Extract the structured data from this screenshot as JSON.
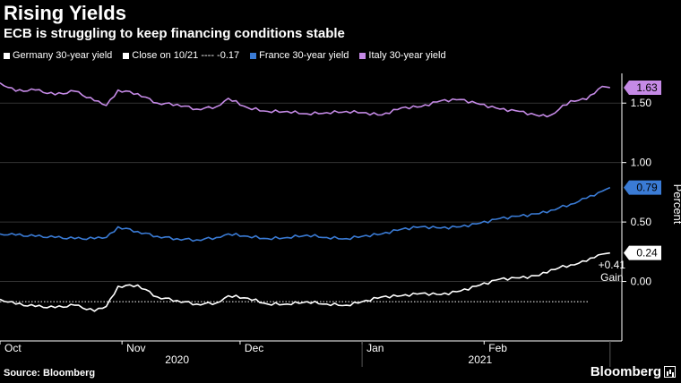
{
  "header": {
    "title": "Rising Yields",
    "subtitle": "ECB is struggling to keep financing conditions stable"
  },
  "footer": {
    "source": "Source: Bloomberg",
    "brand": "Bloomberg"
  },
  "colors": {
    "background": "#000000",
    "germany": "#ffffff",
    "france": "#3a7bd5",
    "italy": "#c58ae6",
    "grid": "#333333"
  },
  "chart_data": {
    "type": "line",
    "ylabel": "Percent",
    "ylim": [
      -0.5,
      1.75
    ],
    "yticks": [
      {
        "value": 0.0,
        "label": "0.00"
      },
      {
        "value": 0.5,
        "label": "0.50"
      },
      {
        "value": 1.0,
        "label": "1.00"
      },
      {
        "value": 1.5,
        "label": "1.50"
      }
    ],
    "xlim": [
      "2020-10-01",
      "2021-03-08"
    ],
    "month_ticks": [
      {
        "date": "2020-10-01",
        "label": "Oct"
      },
      {
        "date": "2020-11-01",
        "label": "Nov"
      },
      {
        "date": "2020-12-01",
        "label": "Dec"
      },
      {
        "date": "2021-01-01",
        "label": "Jan"
      },
      {
        "date": "2021-02-01",
        "label": "Feb"
      }
    ],
    "year_labels": [
      {
        "date": "2020-11-15",
        "label": "2020"
      },
      {
        "date": "2021-01-31",
        "label": "2021"
      }
    ],
    "grid": true,
    "legend_position": "top",
    "legend": [
      {
        "key": "germany",
        "label": "Germany 30-year yield"
      },
      {
        "key": "close",
        "label": "Close on 10/21 ---- -0.17"
      },
      {
        "key": "france",
        "label": "France 30-year yield"
      },
      {
        "key": "italy",
        "label": "Italy 30-year yield"
      }
    ],
    "reference_line": {
      "value": -0.17,
      "label": "Close on 10/21 ---- -0.17"
    },
    "annotation": {
      "line1": "+0.41",
      "line2": "Gain"
    },
    "series": [
      {
        "key": "italy",
        "name": "Italy 30-year yield",
        "color": "#c58ae6",
        "end_label": "1.63",
        "points": [
          [
            "2020-10-01",
            1.67
          ],
          [
            "2020-10-05",
            1.6
          ],
          [
            "2020-10-10",
            1.61
          ],
          [
            "2020-10-15",
            1.57
          ],
          [
            "2020-10-20",
            1.6
          ],
          [
            "2020-10-25",
            1.52
          ],
          [
            "2020-10-28",
            1.48
          ],
          [
            "2020-10-31",
            1.61
          ],
          [
            "2020-11-05",
            1.58
          ],
          [
            "2020-11-10",
            1.5
          ],
          [
            "2020-11-15",
            1.49
          ],
          [
            "2020-11-20",
            1.45
          ],
          [
            "2020-11-25",
            1.47
          ],
          [
            "2020-11-28",
            1.54
          ],
          [
            "2020-12-03",
            1.46
          ],
          [
            "2020-12-08",
            1.43
          ],
          [
            "2020-12-13",
            1.43
          ],
          [
            "2020-12-18",
            1.41
          ],
          [
            "2020-12-23",
            1.42
          ],
          [
            "2020-12-28",
            1.43
          ],
          [
            "2021-01-01",
            1.42
          ],
          [
            "2021-01-06",
            1.4
          ],
          [
            "2021-01-11",
            1.46
          ],
          [
            "2021-01-16",
            1.47
          ],
          [
            "2021-01-21",
            1.52
          ],
          [
            "2021-01-26",
            1.53
          ],
          [
            "2021-01-31",
            1.49
          ],
          [
            "2021-02-05",
            1.45
          ],
          [
            "2021-02-10",
            1.43
          ],
          [
            "2021-02-15",
            1.39
          ],
          [
            "2021-02-18",
            1.4
          ],
          [
            "2021-02-23",
            1.52
          ],
          [
            "2021-02-27",
            1.53
          ],
          [
            "2021-03-01",
            1.58
          ],
          [
            "2021-03-03",
            1.64
          ],
          [
            "2021-03-05",
            1.63
          ]
        ]
      },
      {
        "key": "france",
        "name": "France 30-year yield",
        "color": "#3a7bd5",
        "end_label": "0.79",
        "points": [
          [
            "2020-10-01",
            0.4
          ],
          [
            "2020-10-05",
            0.39
          ],
          [
            "2020-10-10",
            0.38
          ],
          [
            "2020-10-15",
            0.37
          ],
          [
            "2020-10-20",
            0.36
          ],
          [
            "2020-10-25",
            0.36
          ],
          [
            "2020-10-28",
            0.37
          ],
          [
            "2020-10-31",
            0.46
          ],
          [
            "2020-11-05",
            0.42
          ],
          [
            "2020-11-10",
            0.38
          ],
          [
            "2020-11-15",
            0.36
          ],
          [
            "2020-11-20",
            0.35
          ],
          [
            "2020-11-25",
            0.37
          ],
          [
            "2020-11-28",
            0.4
          ],
          [
            "2020-12-03",
            0.38
          ],
          [
            "2020-12-08",
            0.36
          ],
          [
            "2020-12-13",
            0.37
          ],
          [
            "2020-12-18",
            0.39
          ],
          [
            "2020-12-23",
            0.37
          ],
          [
            "2020-12-28",
            0.36
          ],
          [
            "2021-01-01",
            0.38
          ],
          [
            "2021-01-06",
            0.4
          ],
          [
            "2021-01-11",
            0.44
          ],
          [
            "2021-01-16",
            0.46
          ],
          [
            "2021-01-21",
            0.45
          ],
          [
            "2021-01-26",
            0.46
          ],
          [
            "2021-01-31",
            0.49
          ],
          [
            "2021-02-05",
            0.53
          ],
          [
            "2021-02-10",
            0.55
          ],
          [
            "2021-02-15",
            0.57
          ],
          [
            "2021-02-18",
            0.6
          ],
          [
            "2021-02-23",
            0.65
          ],
          [
            "2021-02-27",
            0.7
          ],
          [
            "2021-03-01",
            0.72
          ],
          [
            "2021-03-03",
            0.76
          ],
          [
            "2021-03-05",
            0.79
          ]
        ]
      },
      {
        "key": "germany",
        "name": "Germany 30-year yield",
        "color": "#ffffff",
        "end_label": "0.24",
        "points": [
          [
            "2020-10-01",
            -0.15
          ],
          [
            "2020-10-05",
            -0.19
          ],
          [
            "2020-10-10",
            -0.21
          ],
          [
            "2020-10-15",
            -0.22
          ],
          [
            "2020-10-20",
            -0.2
          ],
          [
            "2020-10-25",
            -0.25
          ],
          [
            "2020-10-28",
            -0.21
          ],
          [
            "2020-10-31",
            -0.04
          ],
          [
            "2020-11-05",
            -0.03
          ],
          [
            "2020-11-10",
            -0.13
          ],
          [
            "2020-11-15",
            -0.16
          ],
          [
            "2020-11-20",
            -0.19
          ],
          [
            "2020-11-25",
            -0.18
          ],
          [
            "2020-11-28",
            -0.12
          ],
          [
            "2020-12-03",
            -0.14
          ],
          [
            "2020-12-08",
            -0.19
          ],
          [
            "2020-12-13",
            -0.19
          ],
          [
            "2020-12-18",
            -0.17
          ],
          [
            "2020-12-23",
            -0.19
          ],
          [
            "2020-12-28",
            -0.2
          ],
          [
            "2021-01-01",
            -0.17
          ],
          [
            "2021-01-06",
            -0.13
          ],
          [
            "2021-01-11",
            -0.12
          ],
          [
            "2021-01-16",
            -0.1
          ],
          [
            "2021-01-21",
            -0.11
          ],
          [
            "2021-01-26",
            -0.08
          ],
          [
            "2021-01-31",
            -0.03
          ],
          [
            "2021-02-05",
            0.02
          ],
          [
            "2021-02-10",
            0.03
          ],
          [
            "2021-02-15",
            0.05
          ],
          [
            "2021-02-18",
            0.1
          ],
          [
            "2021-02-23",
            0.14
          ],
          [
            "2021-02-27",
            0.17
          ],
          [
            "2021-03-01",
            0.2
          ],
          [
            "2021-03-03",
            0.23
          ],
          [
            "2021-03-05",
            0.24
          ]
        ]
      }
    ]
  }
}
